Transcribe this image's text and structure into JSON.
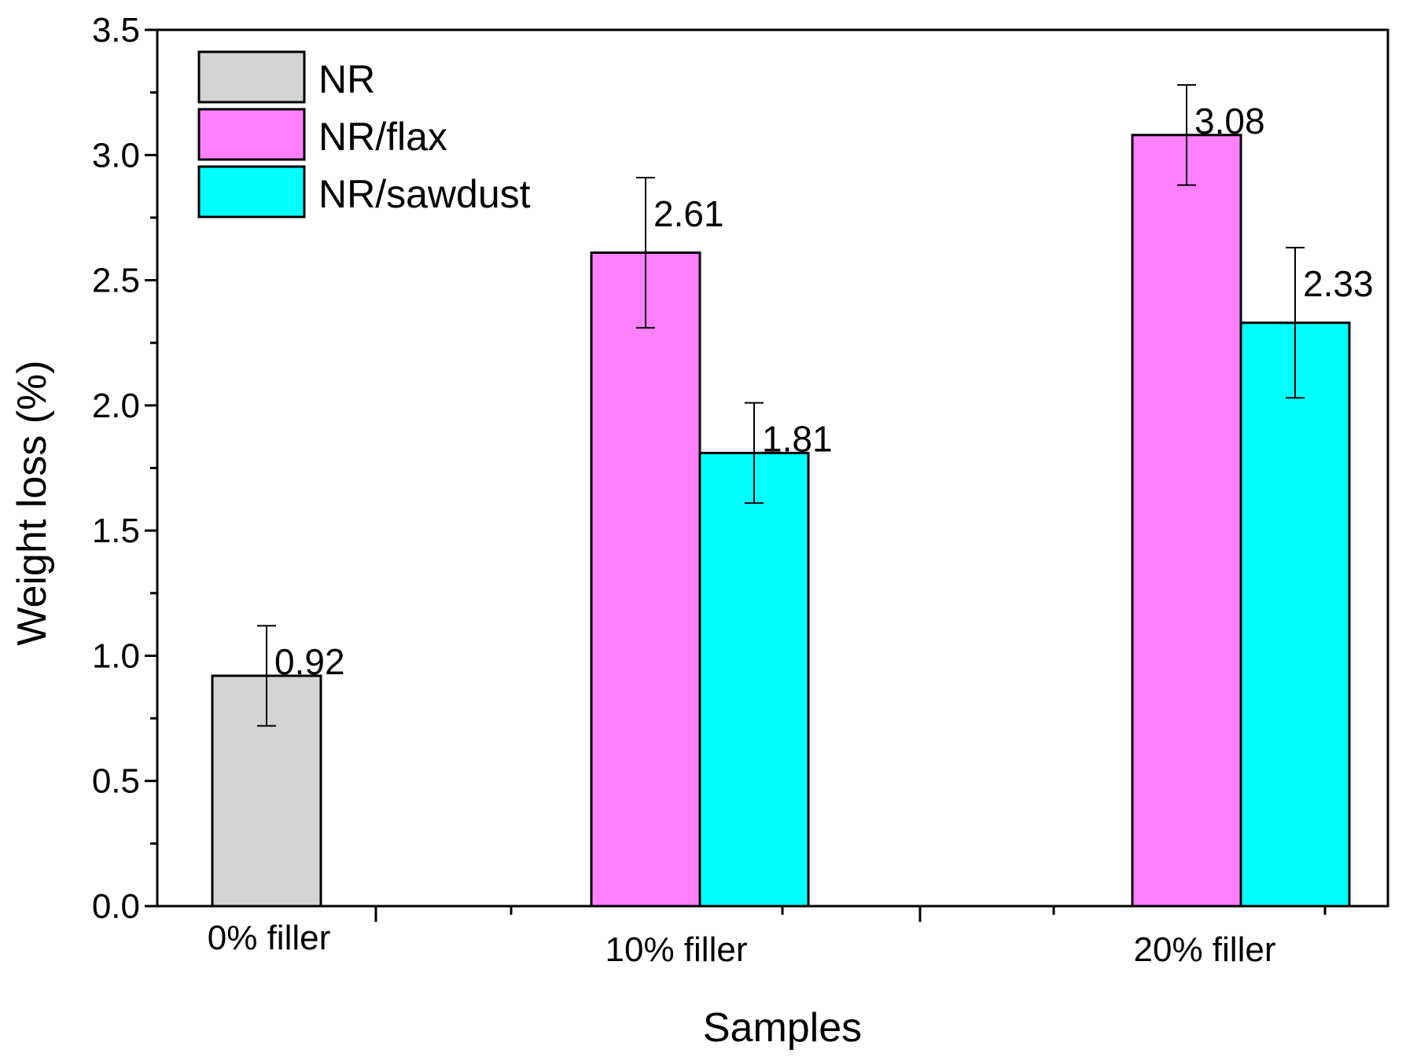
{
  "chart_data": {
    "type": "bar",
    "title": "",
    "xlabel": "Samples",
    "ylabel": "Weight loss (%)",
    "ylim": [
      0,
      3.5
    ],
    "yticks": [
      "0.0",
      "0.5",
      "1.0",
      "1.5",
      "2.0",
      "2.5",
      "3.0",
      "3.5"
    ],
    "categories": [
      "0% filler",
      "10% filler",
      "20% filler"
    ],
    "legend_position": "top-left",
    "grid": false,
    "series": [
      {
        "name": "NR",
        "color": "#d3d3d3",
        "values": [
          0.92,
          null,
          null
        ],
        "errors": [
          0.2,
          null,
          null
        ],
        "labels": [
          "0.92",
          "",
          ""
        ]
      },
      {
        "name": "NR/flax",
        "color": "#ff80ff",
        "values": [
          null,
          2.61,
          3.08
        ],
        "errors": [
          null,
          0.3,
          0.2
        ],
        "labels": [
          "",
          "2.61",
          "3.08"
        ]
      },
      {
        "name": "NR/sawdust",
        "color": "#00ffff",
        "values": [
          null,
          1.81,
          2.33
        ],
        "errors": [
          null,
          0.2,
          0.3
        ],
        "labels": [
          "",
          "1.81",
          "2.33"
        ]
      }
    ]
  }
}
